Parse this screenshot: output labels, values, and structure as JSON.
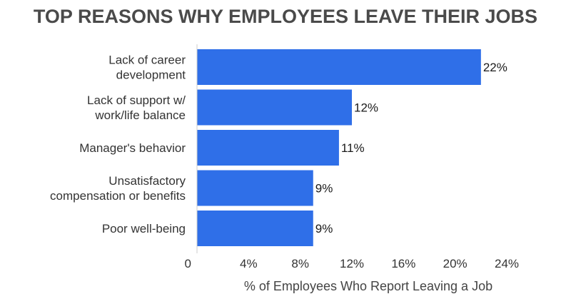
{
  "chart_data": {
    "type": "bar",
    "orientation": "horizontal",
    "title": "TOP REASONS WHY EMPLOYEES LEAVE THEIR JOBS",
    "xlabel": "% of Employees Who Report Leaving a Job",
    "ylabel": "",
    "categories": [
      [
        "Lack of career",
        "development"
      ],
      [
        "Lack of support w/",
        "work/life balance"
      ],
      [
        "Manager's behavior"
      ],
      [
        "Unsatisfactory",
        "compensation or benefits"
      ],
      [
        "Poor well-being"
      ]
    ],
    "values": [
      22,
      12,
      11,
      9,
      9
    ],
    "data_labels": [
      "22%",
      "12%",
      "11%",
      "9%",
      "9%"
    ],
    "xlim": [
      0,
      24
    ],
    "ticks": [
      0,
      4,
      8,
      12,
      16,
      20,
      24
    ],
    "tick_labels": [
      "0",
      "4%",
      "8%",
      "12%",
      "16%",
      "20%",
      "24%"
    ],
    "bar_color": "#2f6fe8",
    "grid": false,
    "legend": "none"
  }
}
